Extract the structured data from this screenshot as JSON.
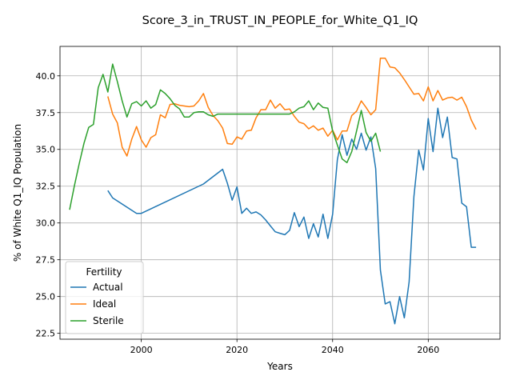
{
  "chart_data": {
    "type": "line",
    "title": "Score_3_in_TRUST_IN_PEOPLE_for_White_Q1_IQ",
    "xlabel": "Years",
    "ylabel": "% of White Q1_IQ Population",
    "xlim": [
      1983,
      2075
    ],
    "ylim": [
      22.1,
      42.0
    ],
    "xticks": [
      2000,
      2020,
      2040,
      2060
    ],
    "yticks": [
      22.5,
      25.0,
      27.5,
      30.0,
      32.5,
      35.0,
      37.5,
      40.0
    ],
    "ytick_labels": [
      "22.5",
      "25.0",
      "27.5",
      "30.0",
      "32.5",
      "35.0",
      "37.5",
      "40.0"
    ],
    "grid": true,
    "legend": {
      "title": "Fertility",
      "placement": "lower-left"
    },
    "series": [
      {
        "name": "Actual",
        "color": "#1f77b4",
        "x": [
          1993,
          1994,
          1999,
          2000,
          2013,
          2017,
          2018,
          2019,
          2020,
          2021,
          2022,
          2023,
          2024,
          2025,
          2026,
          2027,
          2028,
          2029,
          2030,
          2031,
          2032,
          2033,
          2034,
          2035,
          2036,
          2037,
          2038,
          2039,
          2040,
          2041,
          2042,
          2043,
          2044,
          2045,
          2046,
          2047,
          2048,
          2049,
          2050,
          2051,
          2052,
          2053,
          2054,
          2055,
          2056,
          2057,
          2058,
          2059,
          2060,
          2061,
          2062,
          2063,
          2064,
          2065,
          2066,
          2067,
          2068,
          2069,
          2070
        ],
        "values": [
          32.2,
          31.7,
          30.65,
          30.65,
          32.65,
          33.65,
          32.7,
          31.55,
          32.45,
          30.65,
          31.0,
          30.65,
          30.75,
          30.55,
          30.2,
          29.8,
          29.4,
          29.3,
          29.2,
          29.5,
          30.7,
          29.75,
          30.4,
          28.95,
          29.95,
          29.05,
          30.6,
          28.95,
          30.6,
          34.3,
          36.0,
          34.6,
          35.7,
          35.0,
          36.1,
          34.95,
          35.85,
          33.7,
          26.8,
          24.5,
          24.65,
          23.15,
          25.0,
          23.55,
          26.0,
          31.8,
          34.95,
          33.6,
          37.1,
          34.85,
          37.8,
          35.8,
          37.2,
          34.45,
          34.35,
          31.35,
          31.1,
          28.35,
          28.35
        ]
      },
      {
        "name": "Ideal",
        "color": "#ff7f0e",
        "x": [
          1993,
          1994,
          1995,
          1996,
          1997,
          1998,
          1999,
          2000,
          2001,
          2002,
          2003,
          2004,
          2005,
          2006,
          2007,
          2008,
          2009,
          2010,
          2011,
          2012,
          2013,
          2014,
          2015,
          2016,
          2017,
          2018,
          2019,
          2020,
          2021,
          2022,
          2023,
          2024,
          2025,
          2026,
          2027,
          2028,
          2029,
          2030,
          2031,
          2032,
          2033,
          2034,
          2035,
          2036,
          2037,
          2038,
          2039,
          2040,
          2041,
          2042,
          2043,
          2044,
          2045,
          2046,
          2047,
          2048,
          2049,
          2050,
          2051,
          2052,
          2053,
          2054,
          2055,
          2056,
          2057,
          2058,
          2059,
          2060,
          2061,
          2062,
          2063,
          2064,
          2065,
          2066,
          2067,
          2068,
          2069,
          2070
        ],
        "values": [
          38.6,
          37.4,
          36.8,
          35.15,
          34.55,
          35.7,
          36.55,
          35.65,
          35.15,
          35.8,
          36.0,
          37.35,
          37.15,
          38.05,
          38.1,
          38.0,
          37.95,
          37.9,
          37.95,
          38.3,
          38.8,
          37.85,
          37.3,
          36.95,
          36.45,
          35.4,
          35.35,
          35.85,
          35.7,
          36.25,
          36.3,
          37.15,
          37.7,
          37.7,
          38.35,
          37.8,
          38.1,
          37.7,
          37.75,
          37.25,
          36.85,
          36.75,
          36.4,
          36.6,
          36.3,
          36.45,
          35.9,
          36.3,
          35.65,
          36.25,
          36.25,
          37.3,
          37.6,
          38.3,
          37.85,
          37.35,
          37.7,
          41.2,
          41.2,
          40.6,
          40.55,
          40.2,
          39.75,
          39.25,
          38.75,
          38.8,
          38.3,
          39.25,
          38.3,
          39.0,
          38.35,
          38.5,
          38.55,
          38.35,
          38.55,
          37.9,
          37.0,
          36.35
        ]
      },
      {
        "name": "Sterile",
        "color": "#2ca02c",
        "x": [
          1985,
          1986,
          1987,
          1988,
          1989,
          1990,
          1991,
          1992,
          1993,
          1994,
          1995,
          1996,
          1997,
          1998,
          1999,
          2000,
          2001,
          2002,
          2003,
          2004,
          2005,
          2006,
          2007,
          2008,
          2009,
          2010,
          2011,
          2012,
          2013,
          2014,
          2015,
          2016,
          2017,
          2018,
          2019,
          2020,
          2031,
          2032,
          2033,
          2034,
          2035,
          2036,
          2037,
          2038,
          2039,
          2040,
          2041,
          2042,
          2043,
          2044,
          2045,
          2046,
          2047,
          2048,
          2049,
          2050
        ],
        "values": [
          30.9,
          32.5,
          34.0,
          35.4,
          36.5,
          36.7,
          39.2,
          40.1,
          38.9,
          40.8,
          39.6,
          38.3,
          37.2,
          38.1,
          38.25,
          37.95,
          38.3,
          37.8,
          38.05,
          39.05,
          38.8,
          38.45,
          38.0,
          37.75,
          37.2,
          37.2,
          37.5,
          37.55,
          37.55,
          37.35,
          37.25,
          37.4,
          37.4,
          37.4,
          37.4,
          37.4,
          37.4,
          37.55,
          37.8,
          37.9,
          38.3,
          37.7,
          38.15,
          37.85,
          37.8,
          36.25,
          35.3,
          34.35,
          34.1,
          34.85,
          36.25,
          37.65,
          36.15,
          35.55,
          36.1,
          34.85
        ]
      }
    ]
  }
}
